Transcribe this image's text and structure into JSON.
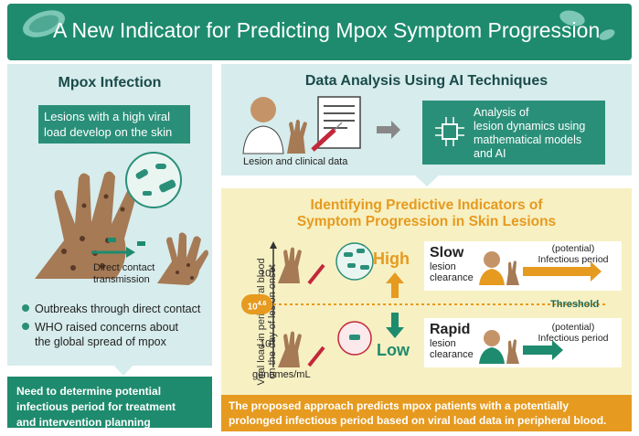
{
  "header": {
    "title": "A New Indicator for Predicting Mpox Symptom Progression"
  },
  "left": {
    "title": "Mpox Infection",
    "lesion_text": "Lesions with a high viral load develop on the skin",
    "transmission": [
      "Direct contact",
      "transmission"
    ],
    "bullets": [
      [
        "Outbreaks through direct contact"
      ],
      [
        "WHO raised concerns about",
        "the global spread of mpox"
      ]
    ],
    "need_text": [
      "Need to determine potential",
      "infectious period for treatment",
      "and intervention planning"
    ]
  },
  "right_top": {
    "title": "Data Analysis Using AI Techniques",
    "lesion_label": "Lesion and clinical data",
    "analysis_text": [
      "Analysis of",
      "lesion dynamics using",
      "mathematical models",
      "and AI"
    ]
  },
  "predict": {
    "title": [
      "Identifying Predictive Indicators of",
      "Symptom Progression in Skin Lesions"
    ],
    "y_axis_label": [
      "Viral load in peripheral blood",
      "on the day of lesion onset"
    ],
    "tick_high": "10",
    "tick_high_exp": "5",
    "tick_low": "10",
    "tick_low_exp": "4",
    "threshold_value": "10",
    "threshold_exp": "4.6",
    "genomes_label": "genomes/mL",
    "threshold_label": "Threshold",
    "high_label": "High",
    "low_label": "Low",
    "slow_card": {
      "big": "Slow",
      "sub": [
        "lesion",
        "clearance"
      ],
      "potential": [
        "(potential)",
        "Infectious period"
      ]
    },
    "rapid_card": {
      "big": "Rapid",
      "sub": [
        "lesion",
        "clearance"
      ],
      "potential": [
        "(potential)",
        "Infectious period"
      ]
    }
  },
  "bottom_text": [
    "The proposed approach predicts mpox patients with a potentially",
    "prolonged infectious period based on viral load data in peripheral blood."
  ],
  "colors": {
    "teal": "#1e8b6e",
    "teal_light": "#d7ecec",
    "orange": "#e69a1f",
    "yellow_bg": "#f7f0c2",
    "skin": "#a57a55"
  }
}
